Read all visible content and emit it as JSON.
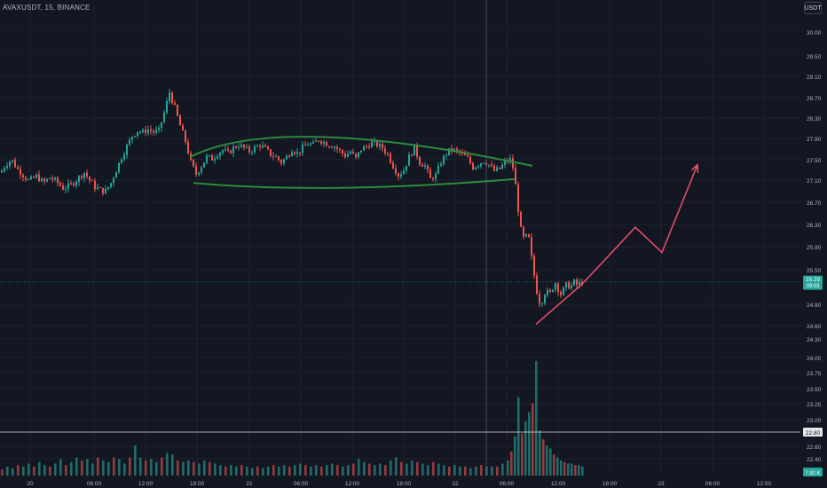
{
  "symbol_label": "AVAXUSDT, 15, BINANCE",
  "currency_label": "USDT",
  "price_badges": {
    "last_price": "25.29",
    "countdown": "09:03",
    "crosshair_price": "22.80",
    "volume_value": "7.92 K"
  },
  "colors": {
    "background": "#131722",
    "up": "#26a69a",
    "down": "#ef5350",
    "pattern_line": "#2e8b3e",
    "projection_line": "#f0506e",
    "grid": "#1c2030",
    "axis_text": "#b2b5be"
  },
  "chart_data": {
    "type": "candlestick",
    "title": "AVAXUSDT, 15, BINANCE",
    "y_ticks": [
      "30.00",
      "29.50",
      "29.10",
      "28.70",
      "28.30",
      "27.90",
      "27.50",
      "27.10",
      "26.70",
      "26.30",
      "25.90",
      "25.50",
      "24.90",
      "24.60",
      "24.30",
      "24.00",
      "23.75",
      "23.50",
      "23.25",
      "23.00",
      "22.60",
      "22.40"
    ],
    "x_ticks": [
      "20",
      "06:00",
      "12:00",
      "18:00",
      "21",
      "06:00",
      "12:00",
      "18:00",
      "22",
      "06:00",
      "12:00",
      "18:00",
      "23",
      "06:00",
      "12:00"
    ],
    "last_price": 25.29,
    "countdown": "09:03",
    "volume_last": "7.92 K",
    "ohlc_path": [
      [
        0,
        27.25
      ],
      [
        5,
        27.4
      ],
      [
        12,
        27.5
      ],
      [
        18,
        27.33
      ],
      [
        25,
        27.2
      ],
      [
        32,
        27.08
      ],
      [
        40,
        27.18
      ],
      [
        48,
        27.05
      ],
      [
        55,
        27.15
      ],
      [
        62,
        27.08
      ],
      [
        70,
        26.96
      ],
      [
        78,
        27.0
      ],
      [
        86,
        27.12
      ],
      [
        94,
        27.25
      ],
      [
        100,
        27.1
      ],
      [
        106,
        26.98
      ],
      [
        112,
        26.92
      ],
      [
        118,
        26.9
      ],
      [
        124,
        27.05
      ],
      [
        130,
        27.3
      ],
      [
        136,
        27.55
      ],
      [
        142,
        27.75
      ],
      [
        148,
        27.95
      ],
      [
        154,
        28.05
      ],
      [
        160,
        28.02
      ],
      [
        166,
        28.08
      ],
      [
        172,
        28.02
      ],
      [
        178,
        28.05
      ],
      [
        184,
        28.4
      ],
      [
        190,
        28.8
      ],
      [
        196,
        28.5
      ],
      [
        202,
        28.15
      ],
      [
        208,
        27.85
      ],
      [
        214,
        27.45
      ],
      [
        220,
        27.22
      ],
      [
        226,
        27.38
      ],
      [
        232,
        27.55
      ],
      [
        238,
        27.52
      ],
      [
        244,
        27.62
      ],
      [
        250,
        27.68
      ],
      [
        256,
        27.62
      ],
      [
        262,
        27.72
      ],
      [
        268,
        27.78
      ],
      [
        274,
        27.72
      ],
      [
        280,
        27.66
      ],
      [
        286,
        27.72
      ],
      [
        292,
        27.78
      ],
      [
        298,
        27.7
      ],
      [
        304,
        27.6
      ],
      [
        310,
        27.55
      ],
      [
        316,
        27.45
      ],
      [
        322,
        27.55
      ],
      [
        328,
        27.7
      ],
      [
        334,
        27.62
      ],
      [
        340,
        27.72
      ],
      [
        346,
        27.8
      ],
      [
        352,
        27.78
      ],
      [
        358,
        27.88
      ],
      [
        364,
        27.83
      ],
      [
        370,
        27.78
      ],
      [
        376,
        27.75
      ],
      [
        382,
        27.66
      ],
      [
        388,
        27.58
      ],
      [
        394,
        27.65
      ],
      [
        400,
        27.52
      ],
      [
        406,
        27.7
      ],
      [
        412,
        27.75
      ],
      [
        418,
        27.82
      ],
      [
        424,
        27.78
      ],
      [
        430,
        27.72
      ],
      [
        436,
        27.6
      ],
      [
        442,
        27.38
      ],
      [
        448,
        27.2
      ],
      [
        454,
        27.3
      ],
      [
        460,
        27.55
      ],
      [
        466,
        27.72
      ],
      [
        472,
        27.45
      ],
      [
        478,
        27.38
      ],
      [
        484,
        27.12
      ],
      [
        490,
        27.2
      ],
      [
        496,
        27.45
      ],
      [
        502,
        27.62
      ],
      [
        508,
        27.7
      ],
      [
        514,
        27.65
      ],
      [
        520,
        27.6
      ],
      [
        526,
        27.52
      ],
      [
        532,
        27.35
      ],
      [
        538,
        27.42
      ],
      [
        544,
        27.48
      ],
      [
        550,
        27.4
      ],
      [
        556,
        27.28
      ],
      [
        562,
        27.32
      ],
      [
        568,
        27.45
      ],
      [
        574,
        27.5
      ],
      [
        578,
        27.3
      ],
      [
        582,
        26.7
      ],
      [
        586,
        26.2
      ],
      [
        590,
        26.0
      ],
      [
        594,
        26.15
      ],
      [
        598,
        25.7
      ],
      [
        602,
        25.3
      ],
      [
        606,
        24.95
      ],
      [
        610,
        24.98
      ],
      [
        614,
        25.15
      ],
      [
        618,
        25.05
      ],
      [
        622,
        25.2
      ],
      [
        626,
        25.3
      ],
      [
        630,
        25.05
      ],
      [
        634,
        25.15
      ],
      [
        638,
        25.25
      ],
      [
        642,
        25.2
      ],
      [
        646,
        25.28
      ],
      [
        650,
        25.22
      ],
      [
        654,
        25.29
      ]
    ],
    "volume_path": [
      [
        0,
        0.2
      ],
      [
        6,
        0.3
      ],
      [
        12,
        0.25
      ],
      [
        18,
        0.35
      ],
      [
        24,
        0.3
      ],
      [
        30,
        0.4
      ],
      [
        36,
        0.3
      ],
      [
        42,
        0.45
      ],
      [
        48,
        0.35
      ],
      [
        54,
        0.3
      ],
      [
        60,
        0.4
      ],
      [
        66,
        0.55
      ],
      [
        72,
        0.35
      ],
      [
        78,
        0.45
      ],
      [
        84,
        0.6
      ],
      [
        90,
        0.5
      ],
      [
        96,
        0.55
      ],
      [
        102,
        0.4
      ],
      [
        108,
        0.6
      ],
      [
        114,
        0.5
      ],
      [
        120,
        0.45
      ],
      [
        126,
        0.6
      ],
      [
        132,
        0.55
      ],
      [
        138,
        0.4
      ],
      [
        144,
        0.6
      ],
      [
        150,
        1.0
      ],
      [
        156,
        0.6
      ],
      [
        162,
        0.5
      ],
      [
        168,
        0.55
      ],
      [
        174,
        0.45
      ],
      [
        180,
        0.6
      ],
      [
        186,
        0.75
      ],
      [
        192,
        0.7
      ],
      [
        198,
        0.5
      ],
      [
        204,
        0.45
      ],
      [
        210,
        0.5
      ],
      [
        216,
        0.45
      ],
      [
        222,
        0.4
      ],
      [
        228,
        0.5
      ],
      [
        234,
        0.45
      ],
      [
        240,
        0.4
      ],
      [
        246,
        0.35
      ],
      [
        252,
        0.3
      ],
      [
        258,
        0.35
      ],
      [
        264,
        0.3
      ],
      [
        270,
        0.35
      ],
      [
        276,
        0.3
      ],
      [
        282,
        0.25
      ],
      [
        288,
        0.3
      ],
      [
        294,
        0.25
      ],
      [
        300,
        0.3
      ],
      [
        306,
        0.35
      ],
      [
        312,
        0.3
      ],
      [
        318,
        0.35
      ],
      [
        324,
        0.3
      ],
      [
        330,
        0.35
      ],
      [
        336,
        0.4
      ],
      [
        342,
        0.35
      ],
      [
        348,
        0.3
      ],
      [
        354,
        0.35
      ],
      [
        360,
        0.3
      ],
      [
        366,
        0.35
      ],
      [
        372,
        0.4
      ],
      [
        378,
        0.35
      ],
      [
        384,
        0.3
      ],
      [
        390,
        0.35
      ],
      [
        396,
        0.4
      ],
      [
        402,
        0.55
      ],
      [
        408,
        0.45
      ],
      [
        414,
        0.4
      ],
      [
        420,
        0.35
      ],
      [
        426,
        0.4
      ],
      [
        432,
        0.35
      ],
      [
        438,
        0.5
      ],
      [
        444,
        0.6
      ],
      [
        450,
        0.45
      ],
      [
        456,
        0.4
      ],
      [
        462,
        0.5
      ],
      [
        468,
        0.45
      ],
      [
        474,
        0.4
      ],
      [
        480,
        0.35
      ],
      [
        486,
        0.45
      ],
      [
        492,
        0.4
      ],
      [
        498,
        0.35
      ],
      [
        504,
        0.3
      ],
      [
        510,
        0.35
      ],
      [
        516,
        0.3
      ],
      [
        522,
        0.3
      ],
      [
        528,
        0.25
      ],
      [
        534,
        0.3
      ],
      [
        540,
        0.35
      ],
      [
        546,
        0.3
      ],
      [
        552,
        0.3
      ],
      [
        558,
        0.3
      ],
      [
        564,
        0.4
      ],
      [
        570,
        0.5
      ],
      [
        574,
        0.8
      ],
      [
        578,
        1.3
      ],
      [
        582,
        2.6
      ],
      [
        586,
        1.4
      ],
      [
        590,
        1.8
      ],
      [
        594,
        2.1
      ],
      [
        598,
        2.4
      ],
      [
        602,
        3.8
      ],
      [
        606,
        1.5
      ],
      [
        610,
        1.2
      ],
      [
        614,
        1.0
      ],
      [
        618,
        0.9
      ],
      [
        622,
        0.7
      ],
      [
        626,
        0.6
      ],
      [
        630,
        0.5
      ],
      [
        634,
        0.45
      ],
      [
        638,
        0.4
      ],
      [
        642,
        0.4
      ],
      [
        646,
        0.35
      ],
      [
        650,
        0.35
      ],
      [
        654,
        0.3
      ]
    ],
    "patterns": {
      "upper_arc_start": [
        214,
        27.55
      ],
      "upper_arc_peak": [
        360,
        27.93
      ],
      "upper_arc_end": [
        600,
        27.38
      ],
      "lower_arc_start": [
        218,
        27.05
      ],
      "lower_arc_trough": [
        380,
        26.96
      ],
      "lower_arc_end": [
        580,
        27.12
      ]
    },
    "projection_points": [
      [
        604,
        24.62
      ],
      [
        656,
        25.25
      ],
      [
        716,
        26.25
      ],
      [
        746,
        25.8
      ],
      [
        786,
        27.4
      ]
    ]
  }
}
